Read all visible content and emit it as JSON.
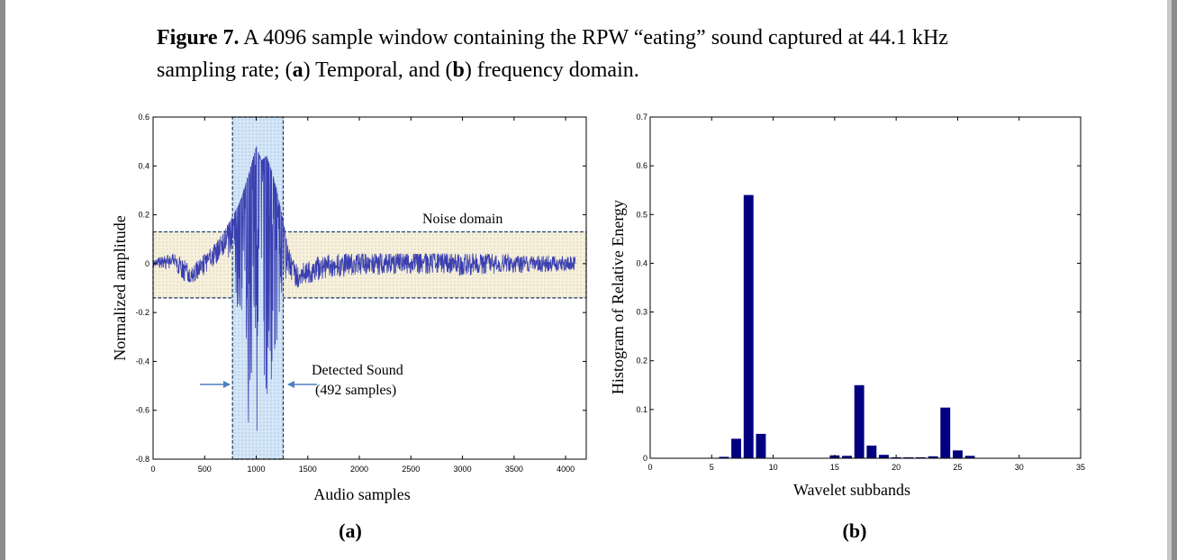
{
  "caption": {
    "label": "Figure 7.",
    "line1_text": " A 4096 sample window containing the RPW “eating” sound captured at 44.1 kHz",
    "line2_a": "sampling rate; (",
    "panel_a": "a",
    "line2_b": ") Temporal, and (",
    "panel_b": "b",
    "line2_c": ") frequency domain."
  },
  "chart_data": [
    {
      "type": "line",
      "panel_label": "(a)",
      "xlabel": "Audio samples",
      "ylabel": "Normalized amplitude",
      "xlim": [
        0,
        4200
      ],
      "ylim": [
        -0.8,
        0.6
      ],
      "x_ticks": [
        0,
        500,
        1000,
        1500,
        2000,
        2500,
        3000,
        3500,
        4000
      ],
      "y_ticks": [
        -0.8,
        -0.6,
        -0.4,
        -0.2,
        0,
        0.2,
        0.4,
        0.6
      ],
      "y_tick_labels": [
        "-0.8",
        "-0.6",
        "-0.4",
        "-0.2",
        "0",
        "0.2",
        "0.4",
        "0.6"
      ],
      "series_color": "#3a3fb0",
      "envelope": {
        "x": [
          0,
          200,
          300,
          400,
          500,
          600,
          700,
          780,
          850,
          950,
          1000,
          1050,
          1100,
          1150,
          1200,
          1250,
          1300,
          1350,
          1400,
          1500,
          1700,
          2000,
          2500,
          3000,
          3500,
          4096
        ],
        "center": [
          0.0,
          0.01,
          -0.03,
          -0.04,
          0.0,
          0.04,
          0.1,
          0.16,
          0.15,
          0.05,
          0.28,
          0.35,
          0.3,
          0.22,
          0.15,
          0.14,
          0.03,
          -0.02,
          -0.06,
          -0.04,
          -0.01,
          0.0,
          0.01,
          0.0,
          0.0,
          0.0
        ],
        "upper": [
          0.02,
          0.04,
          0.02,
          0.0,
          0.04,
          0.08,
          0.14,
          0.2,
          0.26,
          0.4,
          0.48,
          0.42,
          0.44,
          0.38,
          0.3,
          0.2,
          0.08,
          0.03,
          0.0,
          0.02,
          0.04,
          0.04,
          0.04,
          0.04,
          0.04,
          0.03
        ],
        "lower": [
          -0.02,
          -0.03,
          -0.07,
          -0.08,
          -0.05,
          -0.01,
          0.04,
          0.0,
          -0.45,
          -0.72,
          -0.78,
          -0.79,
          -0.7,
          -0.55,
          -0.38,
          -0.1,
          -0.06,
          -0.08,
          -0.1,
          -0.08,
          -0.06,
          -0.05,
          -0.04,
          -0.05,
          -0.04,
          -0.03
        ]
      },
      "noise_domain": {
        "label": "Noise domain",
        "ymin": -0.14,
        "ymax": 0.13
      },
      "detected_window": {
        "label_line1": "Detected Sound",
        "label_line2": "(492 samples)",
        "xmin": 770,
        "xmax": 1262
      }
    },
    {
      "type": "bar",
      "panel_label": "(b)",
      "xlabel": "Wavelet subbands",
      "ylabel": "Histogram of Relative Energy",
      "xlim": [
        0,
        35
      ],
      "ylim": [
        0,
        0.7
      ],
      "x_ticks": [
        0,
        5,
        10,
        15,
        20,
        25,
        30,
        35
      ],
      "y_ticks": [
        0,
        0.1,
        0.2,
        0.3,
        0.4,
        0.5,
        0.6,
        0.7
      ],
      "y_tick_labels": [
        "0",
        "0.1",
        "0.2",
        "0.3",
        "0.4",
        "0.5",
        "0.6",
        "0.7"
      ],
      "bar_color": "#000080",
      "categories": [
        1,
        2,
        3,
        4,
        5,
        6,
        7,
        8,
        9,
        10,
        11,
        12,
        13,
        14,
        15,
        16,
        17,
        18,
        19,
        20,
        21,
        22,
        23,
        24,
        25,
        26,
        27,
        28,
        29,
        30,
        31,
        32
      ],
      "values": [
        0.0005,
        0.0005,
        0.0005,
        0.0005,
        0.001,
        0.003,
        0.04,
        0.54,
        0.05,
        0.001,
        0.001,
        0.001,
        0.001,
        0.001,
        0.006,
        0.005,
        0.15,
        0.026,
        0.007,
        0.002,
        0.002,
        0.002,
        0.004,
        0.104,
        0.016,
        0.005,
        0.001,
        0.001,
        0.001,
        0.001,
        0.001,
        0.001
      ]
    }
  ]
}
